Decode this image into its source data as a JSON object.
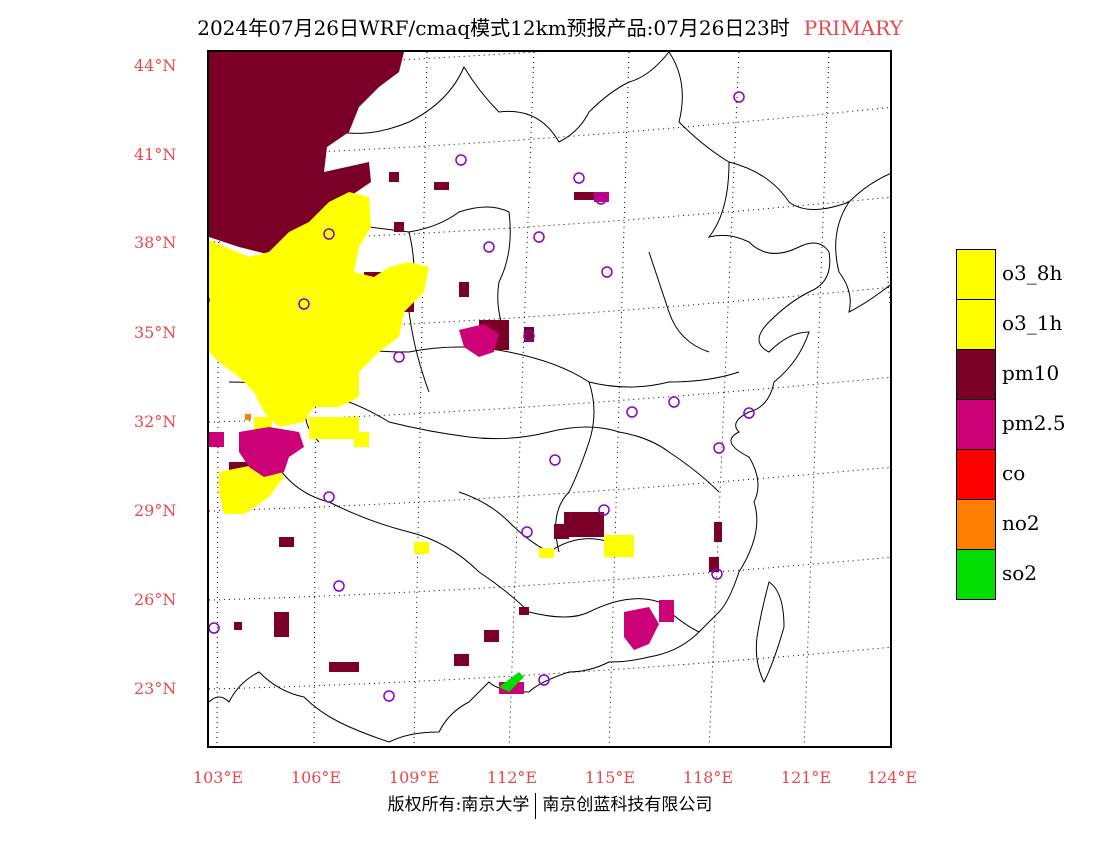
{
  "title": {
    "main": "2024年07月26日WRF/cmaq模式12km预报产品:07月26日23时",
    "tag": "PRIMARY"
  },
  "axes": {
    "lat_labels": [
      "44°N",
      "41°N",
      "38°N",
      "35°N",
      "32°N",
      "29°N",
      "26°N",
      "23°N"
    ],
    "lon_labels": [
      "103°E",
      "106°E",
      "109°E",
      "112°E",
      "115°E",
      "118°E",
      "121°E",
      "124°E"
    ]
  },
  "legend": [
    {
      "label": "o3_8h",
      "color": "#ffff00"
    },
    {
      "label": "o3_1h",
      "color": "#ffff00"
    },
    {
      "label": "pm10",
      "color": "#7a0028"
    },
    {
      "label": "pm2.5",
      "color": "#cc0077"
    },
    {
      "label": "co",
      "color": "#ff0000"
    },
    {
      "label": "no2",
      "color": "#ff8000"
    },
    {
      "label": "so2",
      "color": "#00dd00"
    }
  ],
  "copyright": {
    "left": "版权所有:南京大学",
    "right": "南京创蓝科技有限公司"
  }
}
